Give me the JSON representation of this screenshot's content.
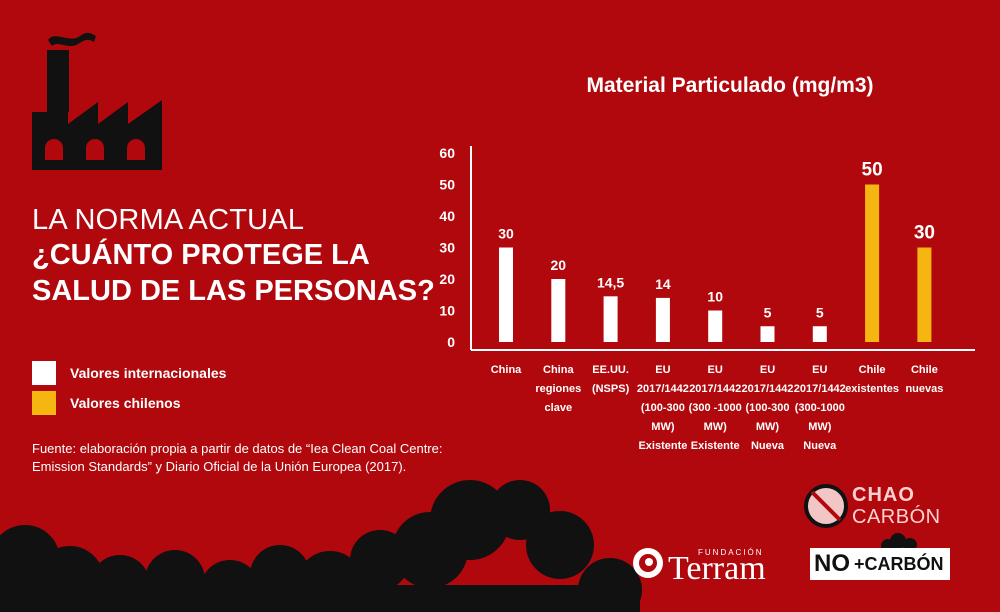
{
  "headline": {
    "line1": "LA NORMA ACTUAL",
    "line2": "¿CUÁNTO PROTEGE LA",
    "line3": "SALUD DE LAS PERSONAS?"
  },
  "legend": [
    {
      "label": "Valores internacionales",
      "color": "#ffffff"
    },
    {
      "label": "Valores chilenos",
      "color": "#f6b612"
    }
  ],
  "source": {
    "line1": "Fuente: elaboración propia a partir de datos de “Iea Clean Coal Centre:",
    "line2": "Emission Standards” y Diario Oficial de la Unión Europea (2017)."
  },
  "logos": {
    "chao_line1": "CHAO",
    "chao_line2": "CARBÓN",
    "terram_small": "FUNDACIÓN",
    "terram_big": "Terram",
    "no_line1": "NO",
    "no_line2": "+CARBÓN"
  },
  "chart_data": {
    "type": "bar",
    "title": "Material Particulado (mg/m3)",
    "ylim": [
      0,
      60
    ],
    "yticks": [
      "0",
      "10",
      "20",
      "30",
      "40",
      "50",
      "60"
    ],
    "grid": false,
    "categories": [
      [
        "China"
      ],
      [
        "China",
        "regiones",
        "clave"
      ],
      [
        "EE.UU.",
        "(NSPS)"
      ],
      [
        "EU",
        "2017/1442",
        "(100-300",
        "MW)",
        "Existente"
      ],
      [
        "EU",
        "2017/1442",
        "(300 -1000",
        "MW)",
        "Existente"
      ],
      [
        "EU",
        "2017/1442",
        "(100-300",
        "MW)",
        "Nueva"
      ],
      [
        "EU",
        "2017/1442",
        "(300-1000",
        "MW)",
        "Nueva"
      ],
      [
        "Chile",
        "existentes"
      ],
      [
        "Chile",
        "nuevas"
      ]
    ],
    "values": [
      30,
      20,
      14.5,
      14,
      10,
      5,
      5,
      50,
      30
    ],
    "value_labels": [
      "30",
      "20",
      "14,5",
      "14",
      "10",
      "5",
      "5",
      "50",
      "30"
    ],
    "group": [
      "internacional",
      "internacional",
      "internacional",
      "internacional",
      "internacional",
      "internacional",
      "internacional",
      "chileno",
      "chileno"
    ],
    "colors": {
      "internacional": "#ffffff",
      "chileno": "#f6b612"
    }
  }
}
